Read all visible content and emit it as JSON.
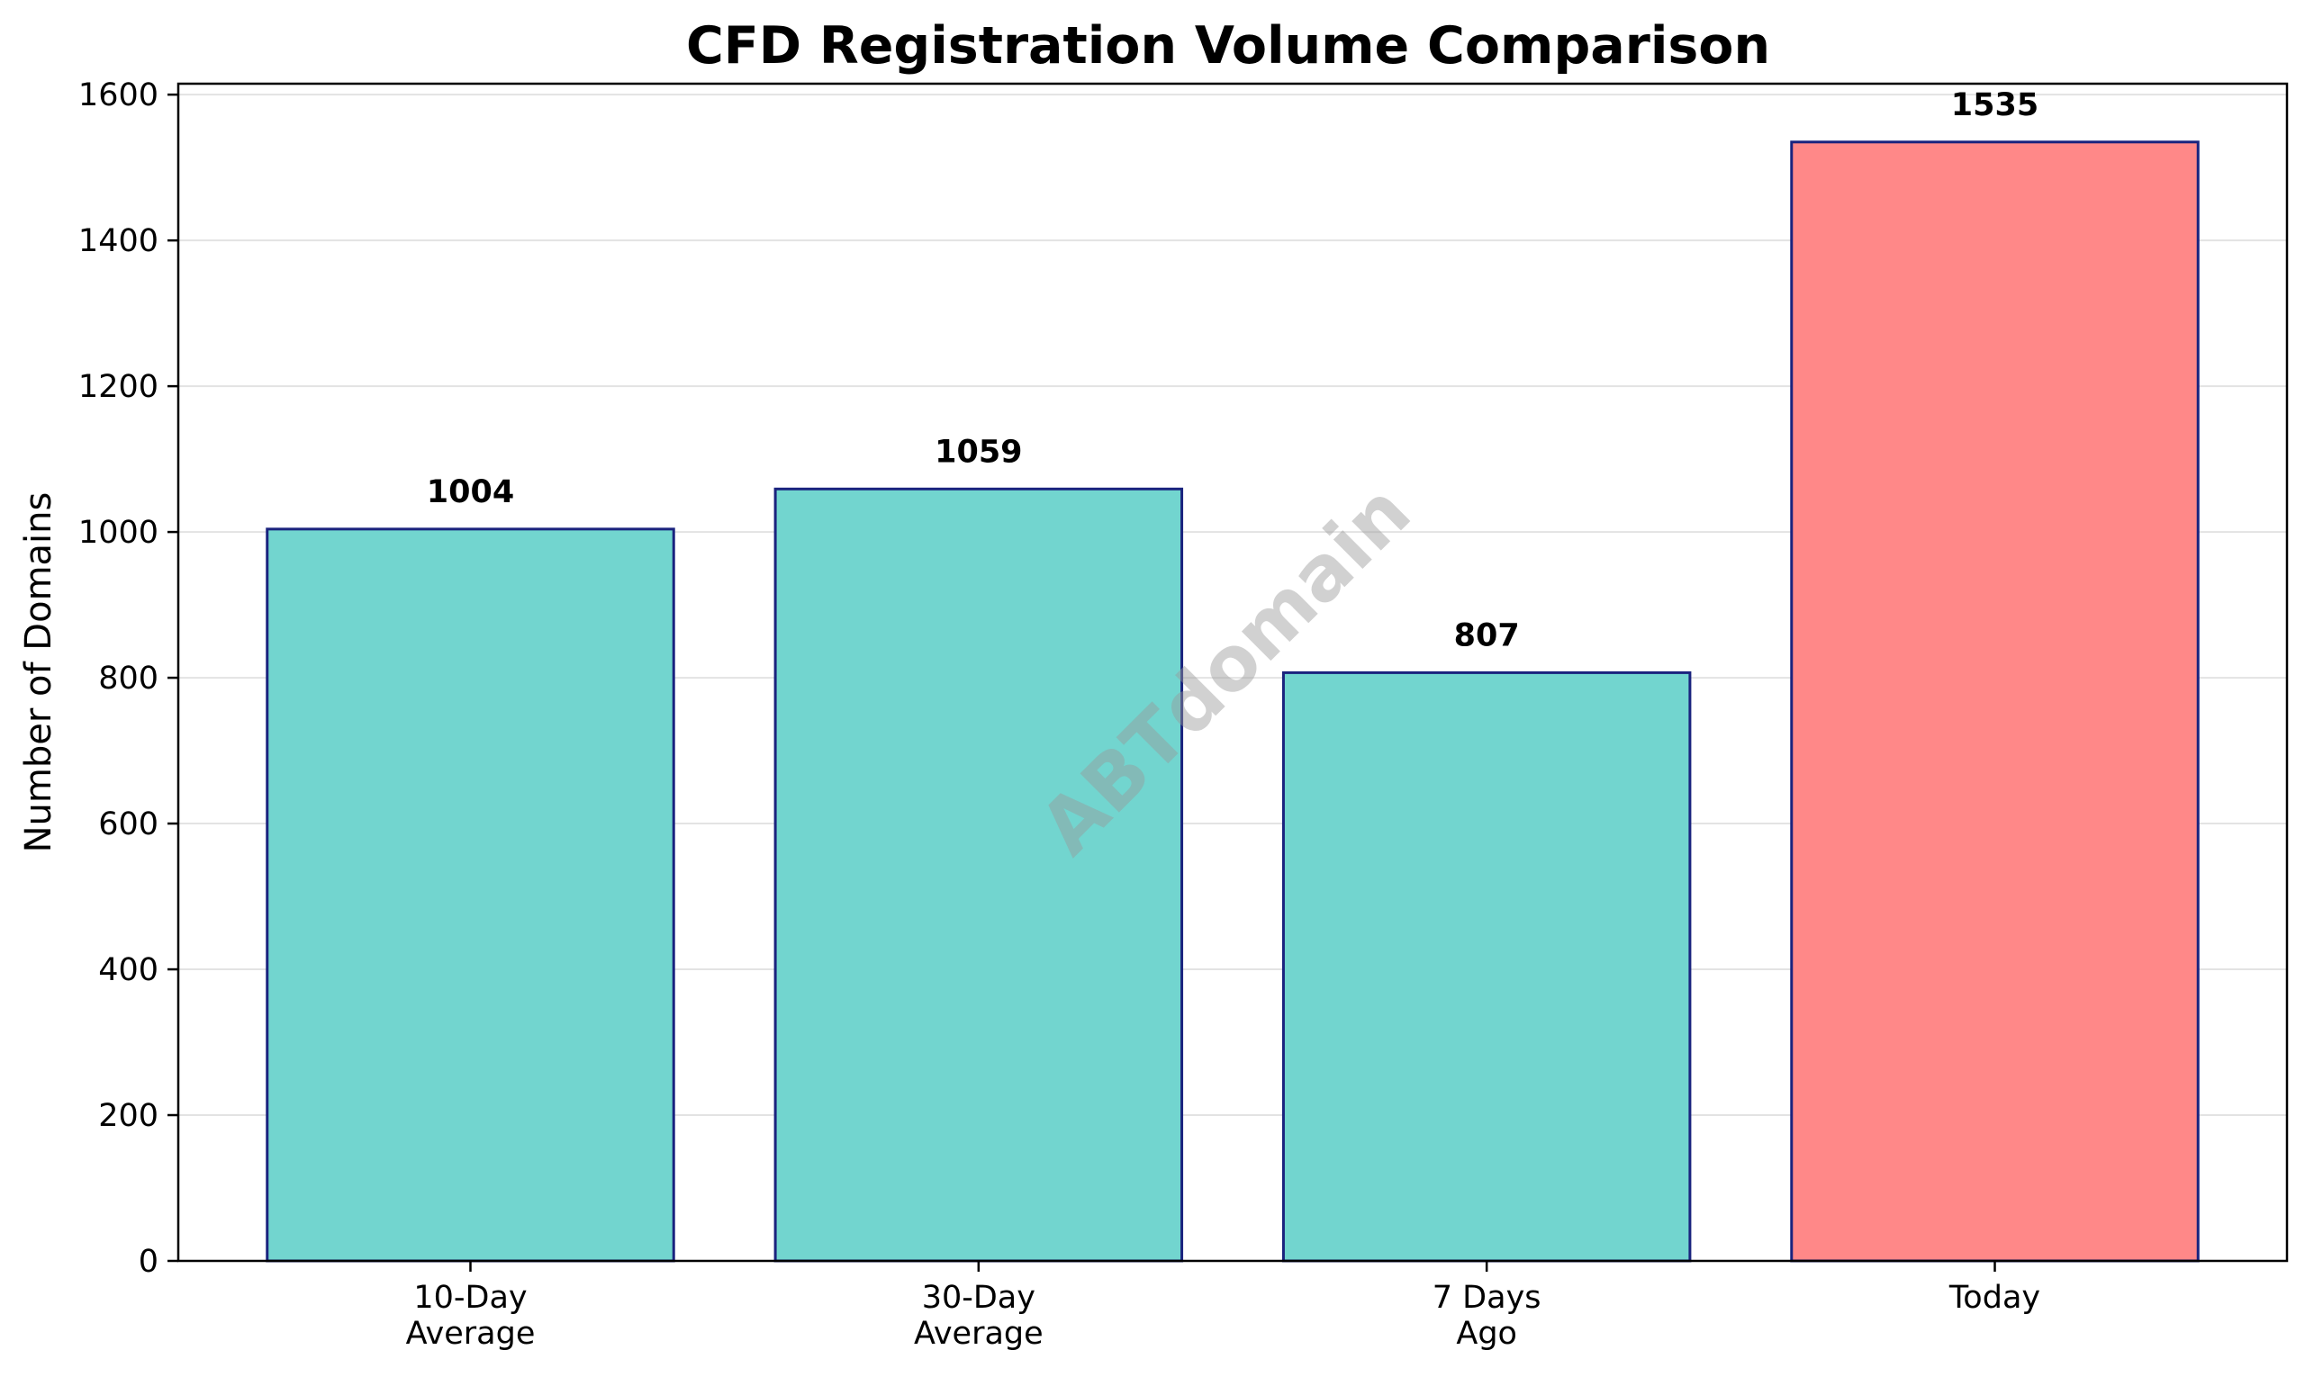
{
  "chart_data": {
    "type": "bar",
    "title": "CFD Registration Volume Comparison",
    "xlabel": "",
    "ylabel": "Number of Domains",
    "categories": [
      [
        "10-Day",
        "Average"
      ],
      [
        "30-Day",
        "Average"
      ],
      [
        "7 Days",
        "Ago"
      ],
      [
        "Today"
      ]
    ],
    "values": [
      1004,
      1059,
      807,
      1535
    ],
    "value_labels": [
      "1004",
      "1059",
      "807",
      "1535"
    ],
    "bar_colors": [
      "#72d5cf",
      "#72d5cf",
      "#72d5cf",
      "#ff8888"
    ],
    "edge_color": "#1a237e",
    "ylim": [
      0,
      1615
    ],
    "yticks": [
      0,
      200,
      400,
      600,
      800,
      1000,
      1200,
      1400,
      1600
    ],
    "ytick_labels": [
      "0",
      "200",
      "400",
      "600",
      "800",
      "1000",
      "1200",
      "1400",
      "1600"
    ],
    "grid": "horizontal",
    "grid_color": "#e3e3e3",
    "watermark": "ABTdomain"
  }
}
